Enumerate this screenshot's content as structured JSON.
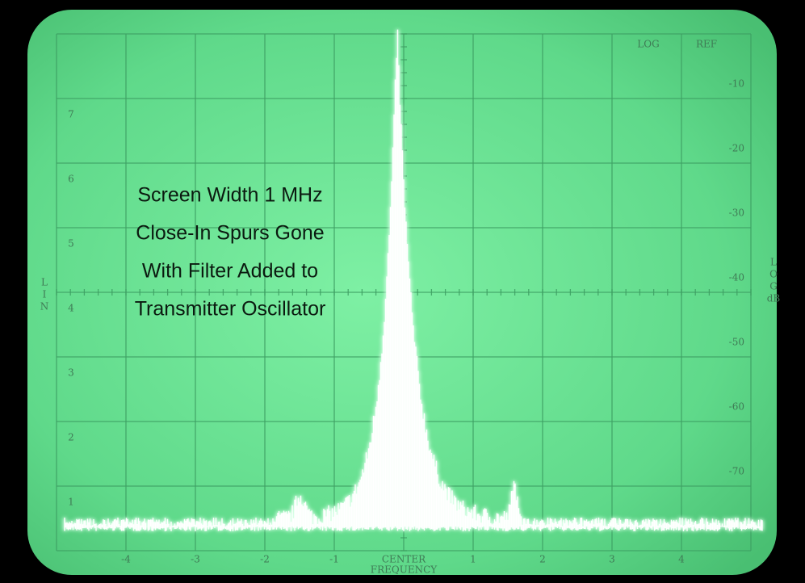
{
  "annotation": {
    "lines": [
      "Screen Width 1 MHz",
      "Close-In Spurs Gone",
      "With Filter Added to",
      "Transmitter Oscillator"
    ]
  },
  "screen": {
    "top_labels": [
      "LOG",
      "REF"
    ],
    "right_labels": [
      "-10",
      "-20",
      "-30",
      "-40",
      "-50",
      "-60",
      "-70"
    ],
    "right_axis_label": [
      "L",
      "O",
      "G",
      "dB"
    ],
    "left_axis_label": [
      "L",
      "I",
      "N"
    ],
    "left_labels": [
      "7",
      "6",
      "5",
      "4",
      "3",
      "2",
      "1"
    ],
    "bottom_labels": [
      "-4",
      "-3",
      "-2",
      "-1",
      "CENTER",
      "1",
      "2",
      "3",
      "4"
    ],
    "bottom_caption": "FREQUENCY"
  }
}
